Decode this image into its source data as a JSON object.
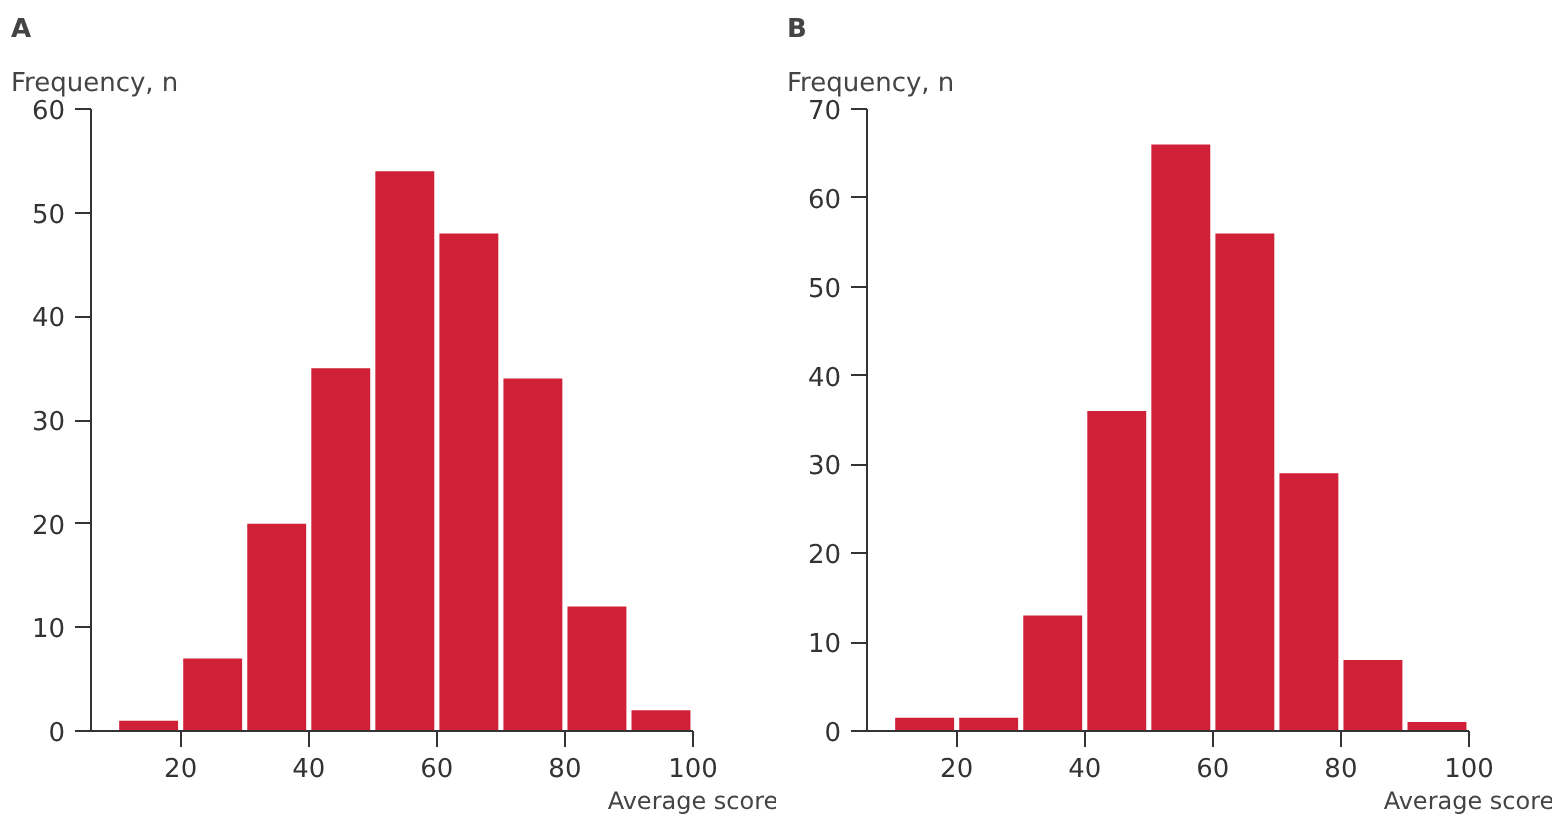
{
  "chart_data": [
    {
      "type": "histogram",
      "title": "A",
      "ylabel": "Frequency, n",
      "xlabel": "Average score",
      "bins": [
        10,
        20,
        30,
        40,
        50,
        60,
        70,
        80,
        90,
        100
      ],
      "values": [
        1,
        7,
        20,
        35,
        54,
        48,
        34,
        12,
        2
      ],
      "color": "#cf2037",
      "xlim": [
        6,
        100
      ],
      "xticks": [
        20,
        40,
        60,
        80,
        100
      ],
      "ylim": [
        0,
        60
      ],
      "yticks": [
        0,
        10,
        20,
        30,
        40,
        50,
        60
      ],
      "grid": false
    },
    {
      "type": "histogram",
      "title": "B",
      "ylabel": "Frequency, n",
      "xlabel": "Average score",
      "bins": [
        10,
        20,
        30,
        40,
        50,
        60,
        70,
        80,
        90,
        100
      ],
      "values": [
        1.5,
        1.5,
        13,
        36,
        66,
        56,
        29,
        8,
        1
      ],
      "color": "#cf2037",
      "xlim": [
        6,
        100
      ],
      "xticks": [
        20,
        40,
        60,
        80,
        100
      ],
      "ylim": [
        0,
        70
      ],
      "yticks": [
        0,
        10,
        20,
        30,
        40,
        50,
        60,
        70
      ],
      "grid": false
    }
  ]
}
